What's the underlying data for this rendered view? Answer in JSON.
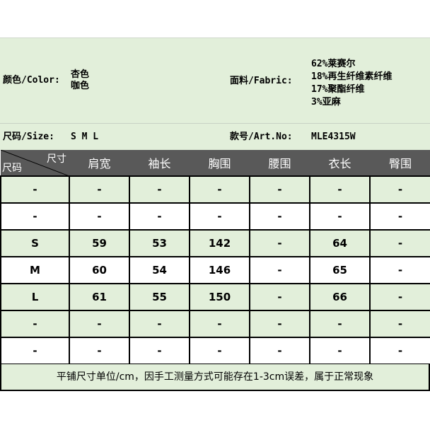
{
  "info": {
    "color_label": "颜色/Color:",
    "colors": [
      "杏色",
      "咖色"
    ],
    "fabric_label": "面料/Fabric:",
    "fabrics": [
      "62%莱赛尔",
      "18%再生纤维素纤维",
      "17%聚酯纤维",
      "3%亚麻"
    ],
    "size_label": "尺码/Size:",
    "sizes": "S M L",
    "art_label": "款号/Art.No:",
    "art_no": "MLE4315W"
  },
  "table": {
    "corner_top": "尺寸",
    "corner_bottom": "尺码",
    "headers": [
      "肩宽",
      "袖长",
      "胸围",
      "腰围",
      "衣长",
      "臀围"
    ],
    "rows": [
      [
        "-",
        "-",
        "-",
        "-",
        "-",
        "-",
        "-"
      ],
      [
        "-",
        "-",
        "-",
        "-",
        "-",
        "-",
        "-"
      ],
      [
        "S",
        "59",
        "53",
        "142",
        "-",
        "64",
        "-"
      ],
      [
        "M",
        "60",
        "54",
        "146",
        "-",
        "65",
        "-"
      ],
      [
        "L",
        "61",
        "55",
        "150",
        "-",
        "66",
        "-"
      ],
      [
        "-",
        "-",
        "-",
        "-",
        "-",
        "-",
        "-"
      ],
      [
        "-",
        "-",
        "-",
        "-",
        "-",
        "-",
        "-"
      ]
    ]
  },
  "footer": "平铺尺寸单位/cm，因手工测量方式可能存在1-3cm误差，属于正常现象",
  "colors": {
    "green": "#e2efda",
    "header": "#595959"
  }
}
